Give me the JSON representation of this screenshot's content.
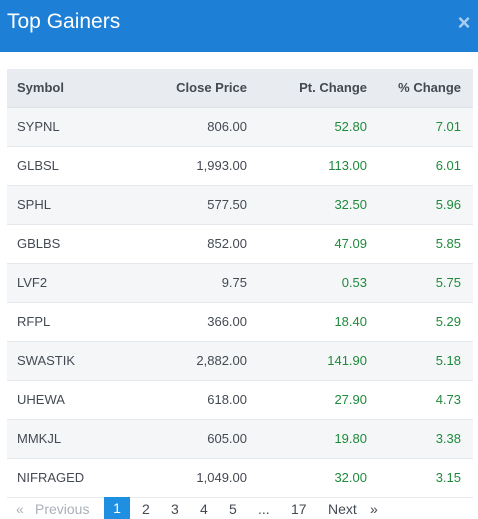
{
  "header": {
    "title": "Top Gainers",
    "close_glyph": "×",
    "close_icon": "close-icon"
  },
  "table": {
    "columns": [
      "Symbol",
      "Close Price",
      "Pt. Change",
      "% Change"
    ],
    "rows": [
      [
        "SYPNL",
        "806.00",
        "52.80",
        "7.01"
      ],
      [
        "GLBSL",
        "1,993.00",
        "113.00",
        "6.01"
      ],
      [
        "SPHL",
        "577.50",
        "32.50",
        "5.96"
      ],
      [
        "GBLBS",
        "852.00",
        "47.09",
        "5.85"
      ],
      [
        "LVF2",
        "9.75",
        "0.53",
        "5.75"
      ],
      [
        "RFPL",
        "366.00",
        "18.40",
        "5.29"
      ],
      [
        "SWASTIK",
        "2,882.00",
        "141.90",
        "5.18"
      ],
      [
        "UHEWA",
        "618.00",
        "27.90",
        "4.73"
      ],
      [
        "MMKJL",
        "605.00",
        "19.80",
        "3.38"
      ],
      [
        "NIFRAGED",
        "1,049.00",
        "32.00",
        "3.15"
      ]
    ]
  },
  "pagination": {
    "prev_glyph": "«",
    "previous": "Previous",
    "pages": [
      "1",
      "2",
      "3",
      "4",
      "5"
    ],
    "ellipsis": "...",
    "last_page": "17",
    "next": "Next",
    "next_glyph": "»",
    "current": "1"
  },
  "colors": {
    "header": "#1e7fd6",
    "positive": "#1f8a3a",
    "active_page": "#1e8fe1"
  }
}
